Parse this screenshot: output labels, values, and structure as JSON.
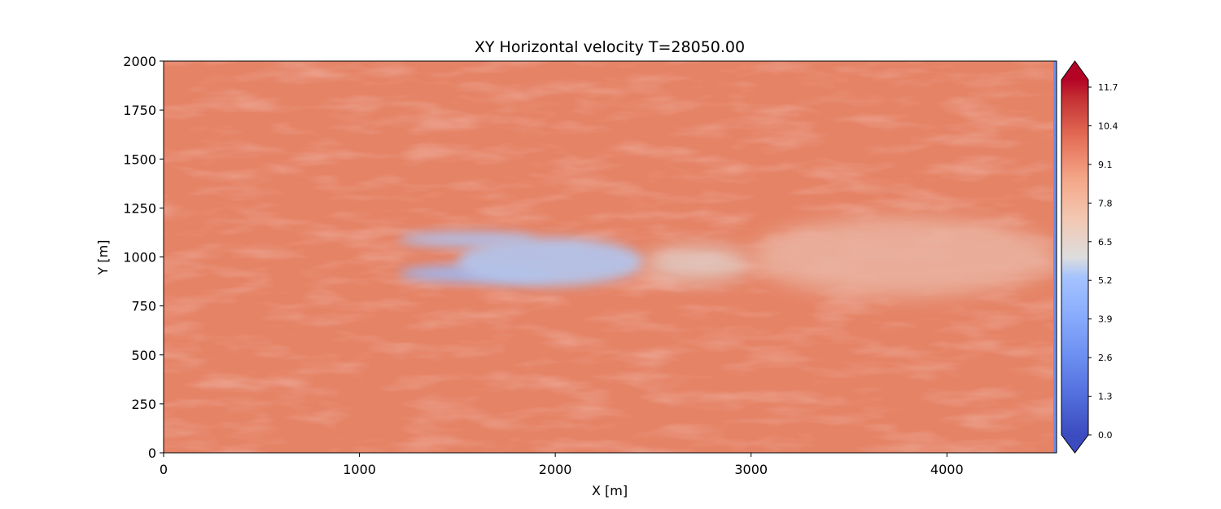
{
  "chart_data": {
    "type": "heatmap",
    "title": "XY Horizontal velocity T=28050.00",
    "xlabel": "X [m]",
    "ylabel": "Y [m]",
    "xlim": [
      0,
      4560
    ],
    "ylim": [
      0,
      2000
    ],
    "x_ticks": [
      0,
      1000,
      2000,
      3000,
      4000
    ],
    "x_tick_labels": [
      "0",
      "1000",
      "2000",
      "3000",
      "4000"
    ],
    "y_ticks": [
      0,
      250,
      500,
      750,
      1000,
      1250,
      1500,
      1750,
      2000
    ],
    "y_tick_labels": [
      "0",
      "250",
      "500",
      "750",
      "1000",
      "1250",
      "1500",
      "1750",
      "2000"
    ],
    "colormap": "coolwarm",
    "colorbar_extend": "both",
    "colorbar_range": [
      0.0,
      11.7
    ],
    "colorbar_ticks": [
      0.0,
      1.3,
      2.6,
      3.9,
      5.2,
      6.5,
      7.8,
      9.1,
      10.4,
      11.7
    ],
    "colorbar_tick_labels": [
      "0.0",
      "1.3",
      "2.6",
      "3.9",
      "5.2",
      "6.5",
      "7.8",
      "9.1",
      "10.4",
      "11.7"
    ],
    "background_value": 9.6,
    "wake_features": [
      {
        "description": "upper wake lobe",
        "x_range": [
          1200,
          1900
        ],
        "y_range": [
          1050,
          1130
        ],
        "value": 4.5
      },
      {
        "description": "lower wake lobe",
        "x_range": [
          1200,
          2000
        ],
        "y_range": [
          870,
          960
        ],
        "value": 4.0
      },
      {
        "description": "central wake core",
        "x_range": [
          1500,
          2450
        ],
        "y_range": [
          850,
          1100
        ],
        "value": 4.6
      },
      {
        "description": "mid wake",
        "x_range": [
          2450,
          3000
        ],
        "y_range": [
          880,
          1050
        ],
        "value": 6.2
      },
      {
        "description": "far wake",
        "x_range": [
          3000,
          4560
        ],
        "y_range": [
          800,
          1200
        ],
        "value": 7.5
      }
    ],
    "colors": {
      "axis": "#000000",
      "cmap_low": "#3b4cc0",
      "cmap_mid": "#dddddd",
      "cmap_high": "#b40426"
    }
  }
}
